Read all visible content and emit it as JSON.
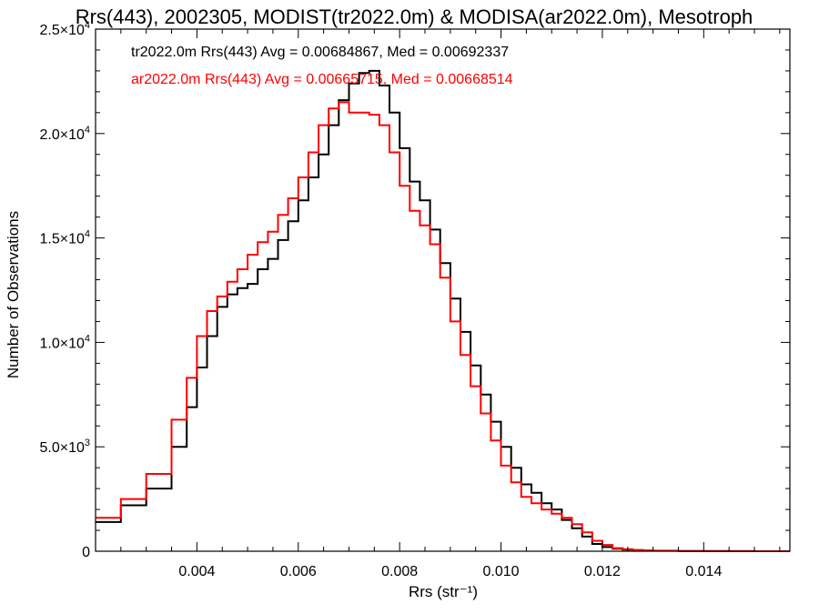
{
  "chart_data": {
    "type": "line",
    "title": "Rrs(443), 2002305, MODIST(tr2022.0m) & MODISA(ar2022.0m), Mesotroph",
    "xlabel": "Rrs (str⁻¹)",
    "ylabel": "Number of Observations",
    "xlim": [
      0.002,
      0.0157
    ],
    "ylim": [
      0,
      25000
    ],
    "x_ticks": [
      0.004,
      0.006,
      0.008,
      0.01,
      0.012,
      0.014
    ],
    "x_tick_labels": [
      "0.004",
      "0.006",
      "0.008",
      "0.010",
      "0.012",
      "0.014"
    ],
    "y_ticks": [
      0,
      5000,
      10000,
      15000,
      20000,
      25000
    ],
    "y_tick_labels": [
      {
        "mant": "0",
        "exp": ""
      },
      {
        "mant": "5.0×10",
        "exp": "3"
      },
      {
        "mant": "1.0×10",
        "exp": "4"
      },
      {
        "mant": "1.5×10",
        "exp": "4"
      },
      {
        "mant": "2.0×10",
        "exp": "4"
      },
      {
        "mant": "2.5×10",
        "exp": "4"
      }
    ],
    "grid": false,
    "legend_position": "top-left",
    "series": [
      {
        "name": "tr2022.0m Rrs(443) Avg = 0.00684867, Med = 0.00692337",
        "color": "#000000",
        "x": [
          0.002,
          0.0025,
          0.003,
          0.0035,
          0.0038,
          0.004,
          0.0042,
          0.0044,
          0.0046,
          0.0048,
          0.005,
          0.0052,
          0.0054,
          0.0056,
          0.0058,
          0.006,
          0.0062,
          0.0064,
          0.0066,
          0.0068,
          0.007,
          0.0072,
          0.0074,
          0.0076,
          0.0078,
          0.008,
          0.0082,
          0.0084,
          0.0086,
          0.0088,
          0.009,
          0.0092,
          0.0094,
          0.0096,
          0.0098,
          0.01,
          0.0102,
          0.0104,
          0.0106,
          0.0108,
          0.011,
          0.0112,
          0.0114,
          0.0116,
          0.0118,
          0.012,
          0.0122,
          0.0124,
          0.0126,
          0.0128,
          0.013,
          0.0135,
          0.014,
          0.0145,
          0.015,
          0.0157
        ],
        "y": [
          1400,
          2200,
          3000,
          5000,
          6900,
          8800,
          10300,
          11700,
          12300,
          12600,
          12800,
          13500,
          14000,
          14900,
          15800,
          16800,
          17900,
          19000,
          20400,
          21600,
          22400,
          22900,
          23000,
          22300,
          21000,
          19300,
          17700,
          16800,
          15400,
          13800,
          12100,
          10500,
          8900,
          7500,
          6200,
          5000,
          4000,
          3200,
          2800,
          2300,
          2000,
          1500,
          1100,
          700,
          350,
          200,
          120,
          80,
          50,
          30,
          20,
          10,
          5,
          3,
          1,
          0
        ]
      },
      {
        "name": "ar2022.0m Rrs(443) Avg = 0.00665715, Med = 0.00668514",
        "color": "#ff0000",
        "x": [
          0.002,
          0.0025,
          0.003,
          0.0035,
          0.0038,
          0.004,
          0.0042,
          0.0044,
          0.0046,
          0.0048,
          0.005,
          0.0052,
          0.0054,
          0.0056,
          0.0058,
          0.006,
          0.0062,
          0.0064,
          0.0066,
          0.0068,
          0.007,
          0.0072,
          0.0074,
          0.0076,
          0.0078,
          0.008,
          0.0082,
          0.0084,
          0.0086,
          0.0088,
          0.009,
          0.0092,
          0.0094,
          0.0096,
          0.0098,
          0.01,
          0.0102,
          0.0104,
          0.0106,
          0.0108,
          0.011,
          0.0112,
          0.0114,
          0.0116,
          0.0118,
          0.012,
          0.0122,
          0.0124,
          0.0126,
          0.0128,
          0.013,
          0.0135,
          0.014,
          0.0145,
          0.015,
          0.0157
        ],
        "y": [
          1600,
          2500,
          3700,
          6300,
          8300,
          10300,
          11500,
          12200,
          12900,
          13500,
          14200,
          14800,
          15300,
          16100,
          16900,
          17900,
          19100,
          20400,
          21200,
          21500,
          21000,
          21000,
          20900,
          20400,
          19100,
          17500,
          16300,
          15600,
          14700,
          13100,
          11000,
          9400,
          7900,
          6600,
          5300,
          4100,
          3300,
          2600,
          2300,
          2000,
          1800,
          1600,
          1300,
          900,
          500,
          300,
          150,
          100,
          60,
          40,
          25,
          15,
          8,
          4,
          2,
          0
        ]
      }
    ]
  }
}
